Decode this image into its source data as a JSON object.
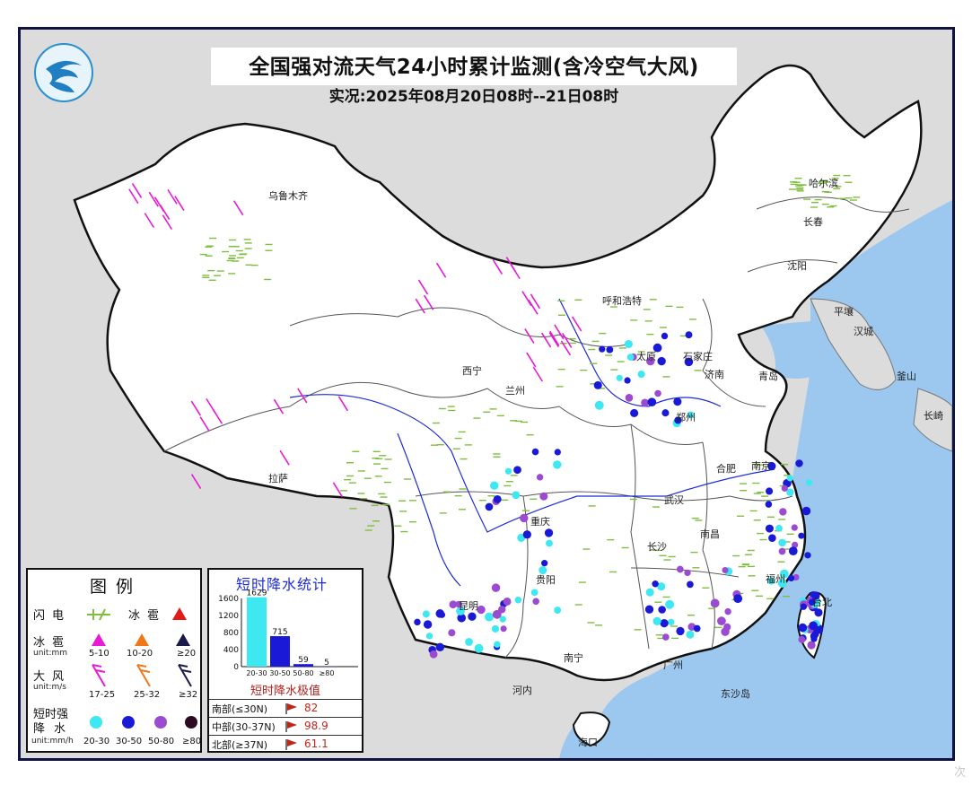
{
  "header": {
    "title": "全国强对流天气24小时累计监测(含冷空气大风)",
    "subtitle": "实况:2025年08月20日08时--21日08时"
  },
  "colors": {
    "land": "#ffffff",
    "foreign_land": "#dcdcdc",
    "sea": "#9cc8f0",
    "lightning": "#7fbf3f",
    "rain_20_30": "#3ee8f0",
    "rain_30_50": "#1a1ad6",
    "rain_50_80": "#9b4bd0",
    "rain_ge80": "#2b0a22",
    "wind_17_25": "#e81ad6",
    "wind_25_32": "#f07818",
    "wind_ge32": "#1a1a4a",
    "hail_5_10": "#e81ad6",
    "hail_10_20": "#f07818",
    "hail_ge20": "#1a1a4a",
    "flag": "#c0261e"
  },
  "map": {
    "cities": [
      "乌鲁木齐",
      "哈尔滨",
      "长春",
      "沈阳",
      "呼和浩特",
      "太原",
      "石家庄",
      "济南",
      "青岛",
      "郑州",
      "西宁",
      "兰州",
      "拉萨",
      "合肥",
      "南京",
      "武汉",
      "重庆",
      "长沙",
      "南昌",
      "贵阳",
      "昆明",
      "南宁",
      "广州",
      "海口",
      "福州",
      "台北"
    ],
    "foreign_labels": [
      "平壤",
      "汉城",
      "釜山",
      "长崎",
      "河内"
    ],
    "sea_labels": [
      "东沙岛"
    ]
  },
  "legend": {
    "title": "图例",
    "lightning_label": "闪电",
    "hail_label_a": "冰雹",
    "hail_label_b": "冰雹",
    "hail_unit": "unit:mm",
    "hail_ranges": [
      "5-10",
      "10-20",
      "≥20"
    ],
    "wind_label": "大风",
    "wind_unit": "unit:m/s",
    "wind_ranges": [
      "17-25",
      "25-32",
      "≥32"
    ],
    "rain_label_1": "短时强",
    "rain_label_2": "降水",
    "rain_unit": "unit:mm/h",
    "rain_ranges": [
      "20-30",
      "30-50",
      "50-80",
      "≥80"
    ]
  },
  "stats": {
    "title": "短时降水统计",
    "y_ticks": [
      "1600",
      "1200",
      "800",
      "400",
      "0"
    ],
    "extreme_title": "短时降水极值",
    "extremes": [
      {
        "region": "南部(≤30N)",
        "value": "82"
      },
      {
        "region": "中部(30-37N)",
        "value": "98.9"
      },
      {
        "region": "北部(≥37N)",
        "value": "61.1"
      }
    ]
  },
  "chart_data": {
    "type": "bar",
    "title": "短时降水统计",
    "categories": [
      "20-30",
      "30-50",
      "50-80",
      "≥80"
    ],
    "values": [
      1629,
      715,
      59,
      5
    ],
    "ylim": [
      0,
      1600
    ],
    "colors": [
      "#3ee8f0",
      "#1a1ad6",
      "#1a1ad6",
      "#1a1ad6"
    ]
  },
  "watermark": "次"
}
